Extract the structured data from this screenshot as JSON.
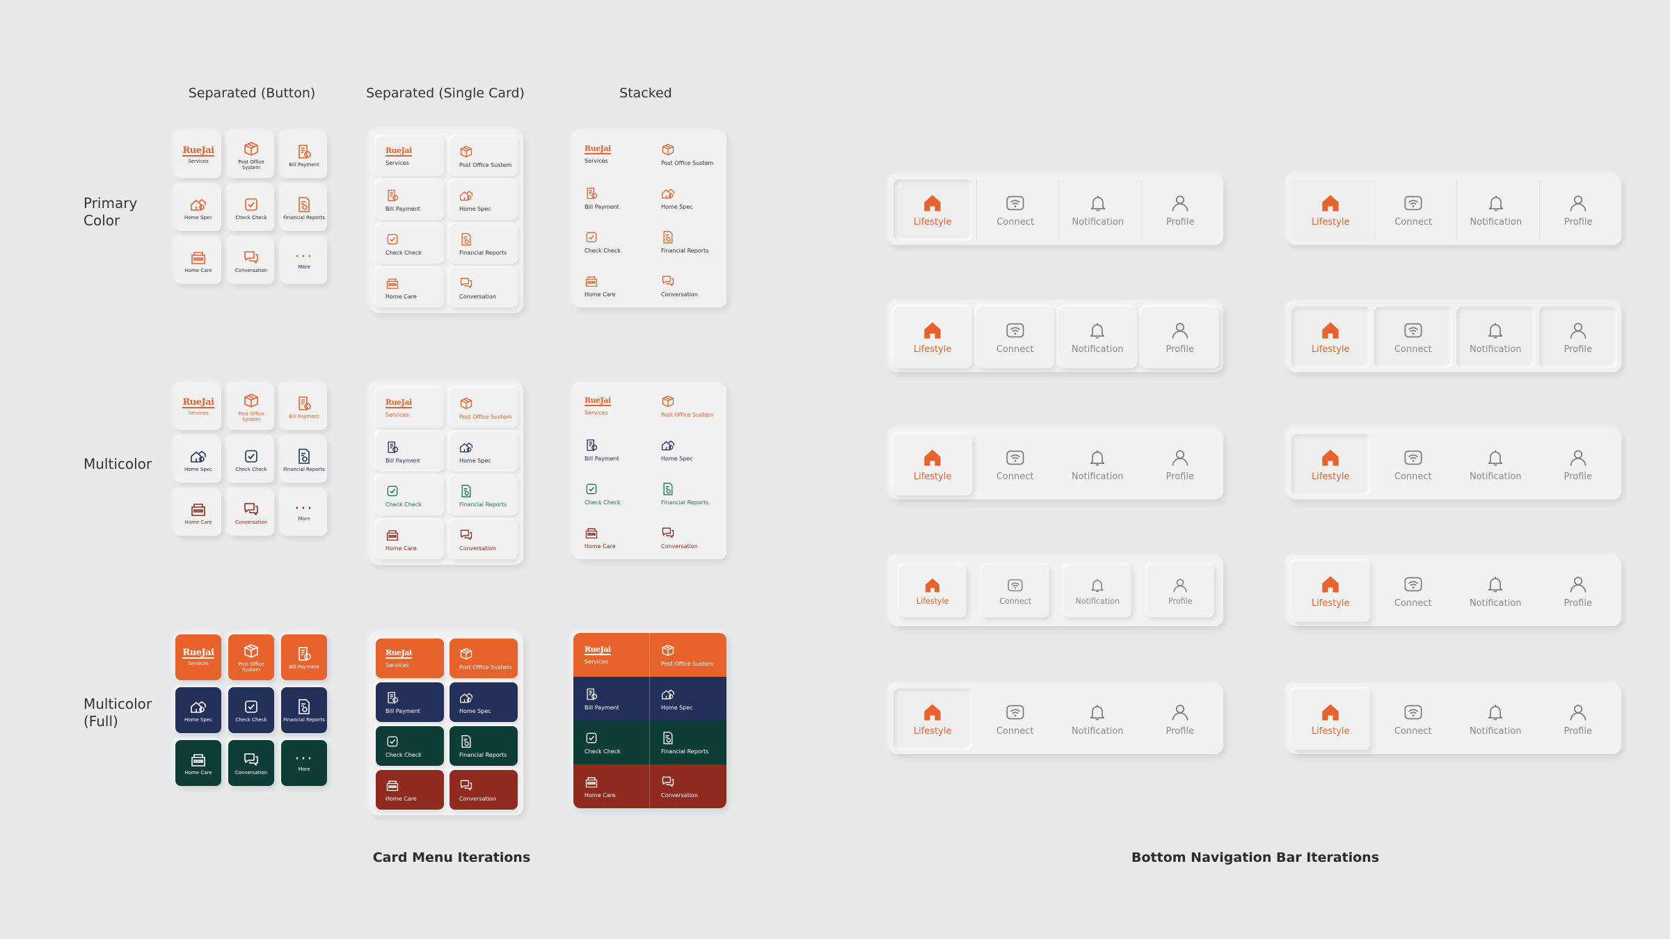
{
  "columns": [
    "Separated (Button)",
    "Separated (Single Card)",
    "Stacked"
  ],
  "rows": [
    "Primary\nColor",
    "Multicolor",
    "Multicolor\n(Full)"
  ],
  "section_titles": {
    "card_menu": "Card Menu Iterations",
    "bottom_nav": "Bottom Navigation Bar Iterations"
  },
  "logo_text": "RueJai",
  "menu_items": {
    "services": "Services",
    "post_office": "Post Office System",
    "post_office_short": "Post Office Sustem",
    "bill_payment": "Bill Payment",
    "home_spec": "Home Spec",
    "check_check": "Check Check",
    "financial_reports": "Financial Reports",
    "home_care": "Home Care",
    "conversation": "Conversation",
    "more": "More"
  },
  "nav_items": [
    "Lifestyle",
    "Connect",
    "Notification",
    "Profile"
  ],
  "colors": {
    "orange": "#e8622c",
    "navy": "#23305a",
    "green": "#0e3d36",
    "red": "#8e2a1e",
    "gray": "#7d7d7d"
  }
}
